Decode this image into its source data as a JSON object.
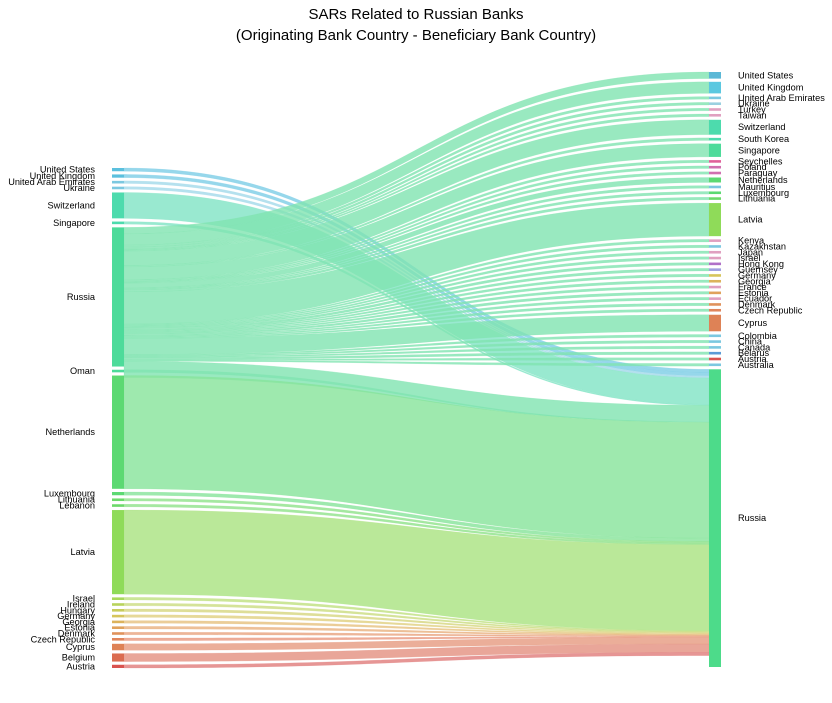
{
  "chart_data": {
    "type": "sankey",
    "title": "SARs Related to Russian Banks",
    "subtitle": "(Originating Bank Country - Beneficiary Bank Country)",
    "sources": [
      {
        "name": "United States",
        "color": "#5bc0de"
      },
      {
        "name": "United Kingdom",
        "color": "#5bc0de"
      },
      {
        "name": "United Arab Emirates",
        "color": "#7cc8e0"
      },
      {
        "name": "Ukraine",
        "color": "#7cc8e0"
      },
      {
        "name": "Switzerland",
        "color": "#4ddbad"
      },
      {
        "name": "Singapore",
        "color": "#4ddbad"
      },
      {
        "name": "Russia",
        "color": "#4ddb9a"
      },
      {
        "name": "Oman",
        "color": "#4ddb9a"
      },
      {
        "name": "Netherlands",
        "color": "#5cd972"
      },
      {
        "name": "Luxembourg",
        "color": "#5cd972"
      },
      {
        "name": "Lithuania",
        "color": "#6cd96a"
      },
      {
        "name": "Lebanon",
        "color": "#6cd96a"
      },
      {
        "name": "Latvia",
        "color": "#8fdb59"
      },
      {
        "name": "Israel",
        "color": "#a8d85c"
      },
      {
        "name": "Ireland",
        "color": "#b8d35c"
      },
      {
        "name": "Hungary",
        "color": "#c8cc5c"
      },
      {
        "name": "Germany",
        "color": "#d6c55c"
      },
      {
        "name": "Georgia",
        "color": "#dcb35c"
      },
      {
        "name": "Estonia",
        "color": "#e0a25c"
      },
      {
        "name": "Denmark",
        "color": "#e0925c"
      },
      {
        "name": "Czech Republic",
        "color": "#e0855c"
      },
      {
        "name": "Cyprus",
        "color": "#de8256"
      },
      {
        "name": "Belgium",
        "color": "#db6c50"
      },
      {
        "name": "Austria",
        "color": "#d9534f"
      }
    ],
    "targets": [
      {
        "name": "United States",
        "color": "#5bb8d6"
      },
      {
        "name": "United Kingdom",
        "color": "#5bc8e0"
      },
      {
        "name": "United Arab Emirates",
        "color": "#7cc8e0"
      },
      {
        "name": "Ukraine",
        "color": "#9ad0e0"
      },
      {
        "name": "Turkey",
        "color": "#e0a0c0"
      },
      {
        "name": "Taiwan",
        "color": "#e0a0c0"
      },
      {
        "name": "Switzerland",
        "color": "#4ddbad"
      },
      {
        "name": "South Korea",
        "color": "#4ddbad"
      },
      {
        "name": "Singapore",
        "color": "#4ddb9a"
      },
      {
        "name": "Seychelles",
        "color": "#e0609a"
      },
      {
        "name": "Poland",
        "color": "#d070b0"
      },
      {
        "name": "Paraguay",
        "color": "#d070b0"
      },
      {
        "name": "Netherlands",
        "color": "#5cd972"
      },
      {
        "name": "Mauritius",
        "color": "#7cc8e0"
      },
      {
        "name": "Luxembourg",
        "color": "#5cd972"
      },
      {
        "name": "Lithuania",
        "color": "#6cd96a"
      },
      {
        "name": "Latvia",
        "color": "#8fdb59"
      },
      {
        "name": "Kenya",
        "color": "#e0a0c0"
      },
      {
        "name": "Kazakhstan",
        "color": "#7cc8e0"
      },
      {
        "name": "Japan",
        "color": "#e0a0c0"
      },
      {
        "name": "Israel",
        "color": "#e0a0c0"
      },
      {
        "name": "Hong Kong",
        "color": "#b070c8"
      },
      {
        "name": "Guernsey",
        "color": "#a0a0e0"
      },
      {
        "name": "Germany",
        "color": "#d6c55c"
      },
      {
        "name": "Georgia",
        "color": "#dcb35c"
      },
      {
        "name": "France",
        "color": "#e0a0c0"
      },
      {
        "name": "Estonia",
        "color": "#e0a25c"
      },
      {
        "name": "Ecuador",
        "color": "#e0a0c0"
      },
      {
        "name": "Denmark",
        "color": "#e0925c"
      },
      {
        "name": "Czech Republic",
        "color": "#e0855c"
      },
      {
        "name": "Cyprus",
        "color": "#de8256"
      },
      {
        "name": "Colombia",
        "color": "#7cc8e0"
      },
      {
        "name": "China",
        "color": "#7cc8e0"
      },
      {
        "name": "Canada",
        "color": "#7cc8e0"
      },
      {
        "name": "Belarus",
        "color": "#5b9bd6"
      },
      {
        "name": "Austria",
        "color": "#d9534f"
      },
      {
        "name": "Australia",
        "color": "#7cc8e0"
      },
      {
        "name": "Russia",
        "color": "#4ddb8a"
      }
    ],
    "source_values": [
      2,
      2,
      0.6,
      0.6,
      16,
      0.6,
      86,
      0.3,
      70,
      2,
      1,
      1,
      52,
      0.5,
      0.5,
      0.5,
      0.5,
      0.5,
      0.5,
      0.5,
      0.5,
      4,
      5,
      2
    ],
    "target_values": [
      4,
      7,
      1.2,
      1.2,
      0.6,
      0.6,
      9,
      0.8,
      8,
      0.8,
      0.6,
      0.6,
      3,
      0.6,
      0.6,
      1.2,
      20,
      0.6,
      0.6,
      0.6,
      0.6,
      1.2,
      0.6,
      0.6,
      0.6,
      0.6,
      1,
      0.6,
      0.6,
      0.6,
      10,
      0.6,
      0.6,
      0.6,
      1.2,
      0.6,
      0.6,
      180
    ],
    "flows": [
      {
        "source": "United States",
        "target": "Russia",
        "value": 2
      },
      {
        "source": "United Kingdom",
        "target": "Russia",
        "value": 2
      },
      {
        "source": "United Arab Emirates",
        "target": "Russia",
        "value": 0.6
      },
      {
        "source": "Ukraine",
        "target": "Russia",
        "value": 0.6
      },
      {
        "source": "Switzerland",
        "target": "Russia",
        "value": 16
      },
      {
        "source": "Singapore",
        "target": "Russia",
        "value": 0.6
      },
      {
        "source": "Russia",
        "target": "United States",
        "value": 4
      },
      {
        "source": "Russia",
        "target": "United Kingdom",
        "value": 7
      },
      {
        "source": "Russia",
        "target": "United Arab Emirates",
        "value": 1.2
      },
      {
        "source": "Russia",
        "target": "Ukraine",
        "value": 1.2
      },
      {
        "source": "Russia",
        "target": "Turkey",
        "value": 0.6
      },
      {
        "source": "Russia",
        "target": "Taiwan",
        "value": 0.6
      },
      {
        "source": "Russia",
        "target": "Switzerland",
        "value": 9
      },
      {
        "source": "Russia",
        "target": "South Korea",
        "value": 0.8
      },
      {
        "source": "Russia",
        "target": "Singapore",
        "value": 8
      },
      {
        "source": "Russia",
        "target": "Seychelles",
        "value": 0.8
      },
      {
        "source": "Russia",
        "target": "Poland",
        "value": 0.6
      },
      {
        "source": "Russia",
        "target": "Paraguay",
        "value": 0.6
      },
      {
        "source": "Russia",
        "target": "Netherlands",
        "value": 3
      },
      {
        "source": "Russia",
        "target": "Mauritius",
        "value": 0.6
      },
      {
        "source": "Russia",
        "target": "Luxembourg",
        "value": 0.6
      },
      {
        "source": "Russia",
        "target": "Lithuania",
        "value": 1.2
      },
      {
        "source": "Russia",
        "target": "Latvia",
        "value": 20
      },
      {
        "source": "Russia",
        "target": "Kenya",
        "value": 0.6
      },
      {
        "source": "Russia",
        "target": "Kazakhstan",
        "value": 0.6
      },
      {
        "source": "Russia",
        "target": "Japan",
        "value": 0.6
      },
      {
        "source": "Russia",
        "target": "Israel",
        "value": 0.6
      },
      {
        "source": "Russia",
        "target": "Hong Kong",
        "value": 1.2
      },
      {
        "source": "Russia",
        "target": "Guernsey",
        "value": 0.6
      },
      {
        "source": "Russia",
        "target": "Germany",
        "value": 0.6
      },
      {
        "source": "Russia",
        "target": "Georgia",
        "value": 0.6
      },
      {
        "source": "Russia",
        "target": "France",
        "value": 0.6
      },
      {
        "source": "Russia",
        "target": "Estonia",
        "value": 1
      },
      {
        "source": "Russia",
        "target": "Ecuador",
        "value": 0.6
      },
      {
        "source": "Russia",
        "target": "Denmark",
        "value": 0.6
      },
      {
        "source": "Russia",
        "target": "Czech Republic",
        "value": 0.6
      },
      {
        "source": "Russia",
        "target": "Cyprus",
        "value": 10
      },
      {
        "source": "Russia",
        "target": "Colombia",
        "value": 0.6
      },
      {
        "source": "Russia",
        "target": "China",
        "value": 0.6
      },
      {
        "source": "Russia",
        "target": "Canada",
        "value": 0.6
      },
      {
        "source": "Russia",
        "target": "Belarus",
        "value": 1.2
      },
      {
        "source": "Russia",
        "target": "Austria",
        "value": 0.6
      },
      {
        "source": "Russia",
        "target": "Australia",
        "value": 0.6
      },
      {
        "source": "Russia",
        "target": "Russia",
        "value": 10
      },
      {
        "source": "Oman",
        "target": "Russia",
        "value": 0.3
      },
      {
        "source": "Netherlands",
        "target": "Russia",
        "value": 70
      },
      {
        "source": "Luxembourg",
        "target": "Russia",
        "value": 2
      },
      {
        "source": "Lithuania",
        "target": "Russia",
        "value": 1
      },
      {
        "source": "Lebanon",
        "target": "Russia",
        "value": 1
      },
      {
        "source": "Latvia",
        "target": "Russia",
        "value": 52
      },
      {
        "source": "Israel",
        "target": "Russia",
        "value": 0.5
      },
      {
        "source": "Ireland",
        "target": "Russia",
        "value": 0.5
      },
      {
        "source": "Hungary",
        "target": "Russia",
        "value": 0.5
      },
      {
        "source": "Germany",
        "target": "Russia",
        "value": 0.5
      },
      {
        "source": "Georgia",
        "target": "Russia",
        "value": 0.5
      },
      {
        "source": "Estonia",
        "target": "Russia",
        "value": 0.5
      },
      {
        "source": "Denmark",
        "target": "Russia",
        "value": 0.5
      },
      {
        "source": "Czech Republic",
        "target": "Russia",
        "value": 0.5
      },
      {
        "source": "Cyprus",
        "target": "Russia",
        "value": 4
      },
      {
        "source": "Belgium",
        "target": "Russia",
        "value": 5
      },
      {
        "source": "Austria",
        "target": "Russia",
        "value": 2
      }
    ]
  }
}
